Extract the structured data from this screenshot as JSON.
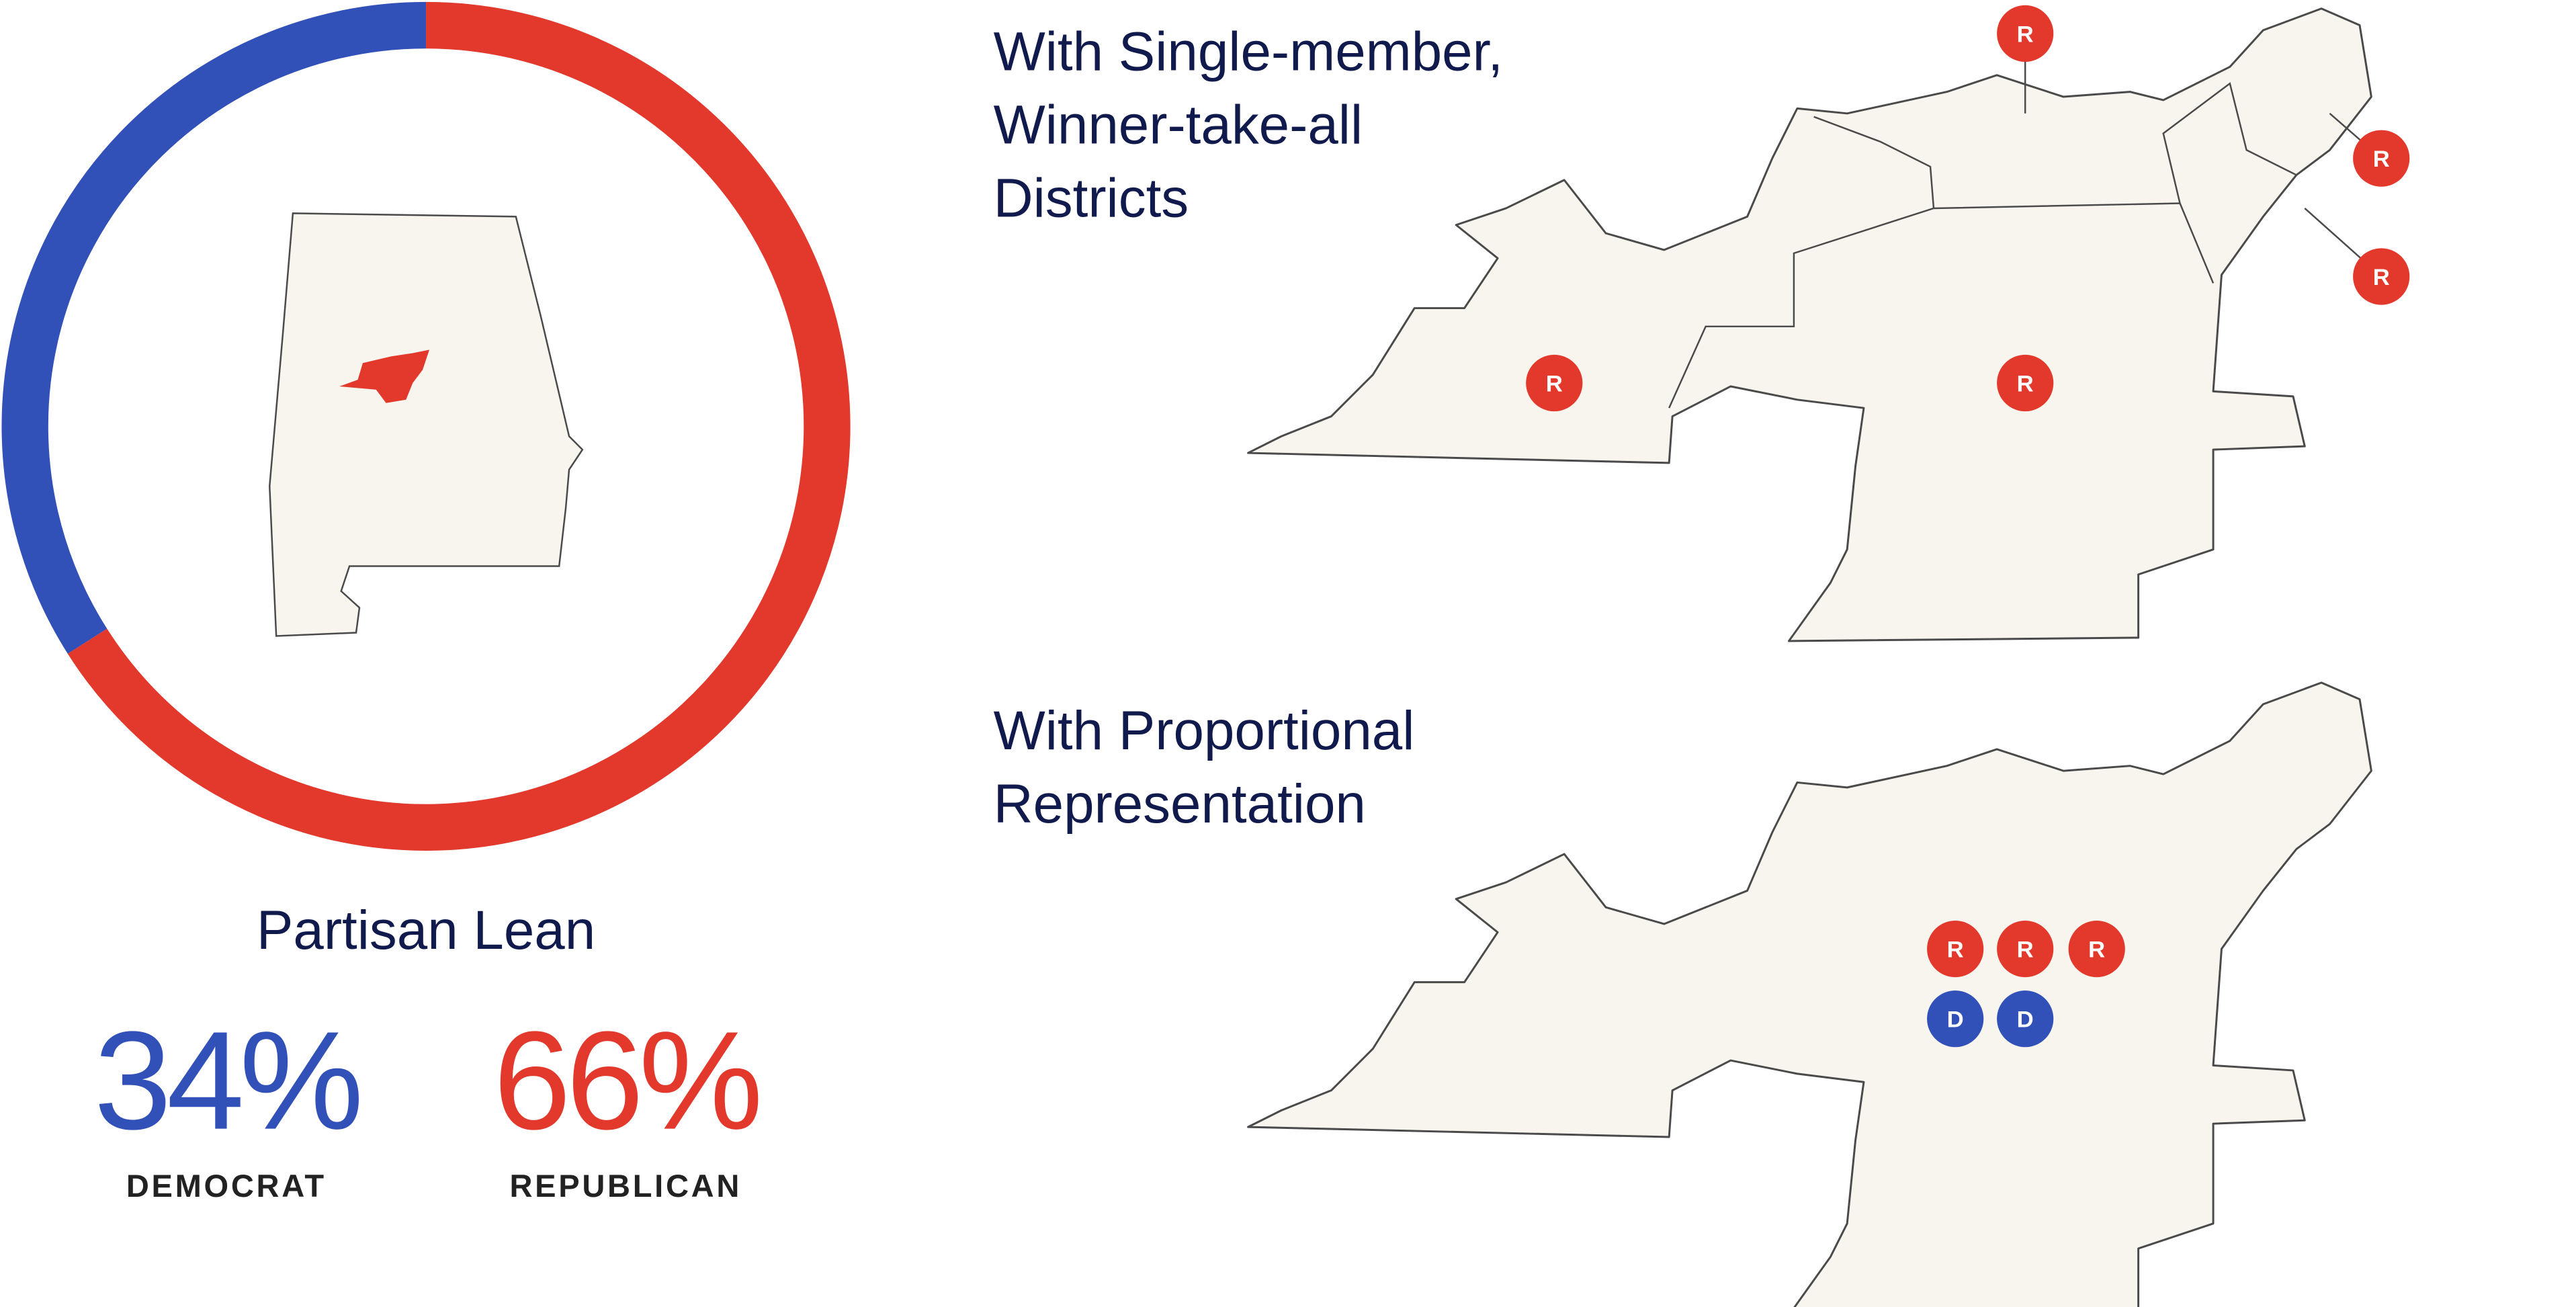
{
  "chart_data": {
    "type": "pie",
    "title": "Partisan Lean",
    "categories": [
      "DEMOCRAT",
      "REPUBLICAN"
    ],
    "values": [
      34,
      66
    ],
    "value_labels": [
      "34%",
      "66%"
    ],
    "colors": [
      "#3150b8",
      "#e3382c"
    ],
    "donut": true
  },
  "maps": [
    {
      "title": "With Single-member, Winner-take-all Districts",
      "seats": [
        "R",
        "R",
        "R",
        "R",
        "R"
      ]
    },
    {
      "title": "With Proportional Representation",
      "seats": [
        "R",
        "R",
        "R",
        "D",
        "D"
      ]
    }
  ]
}
